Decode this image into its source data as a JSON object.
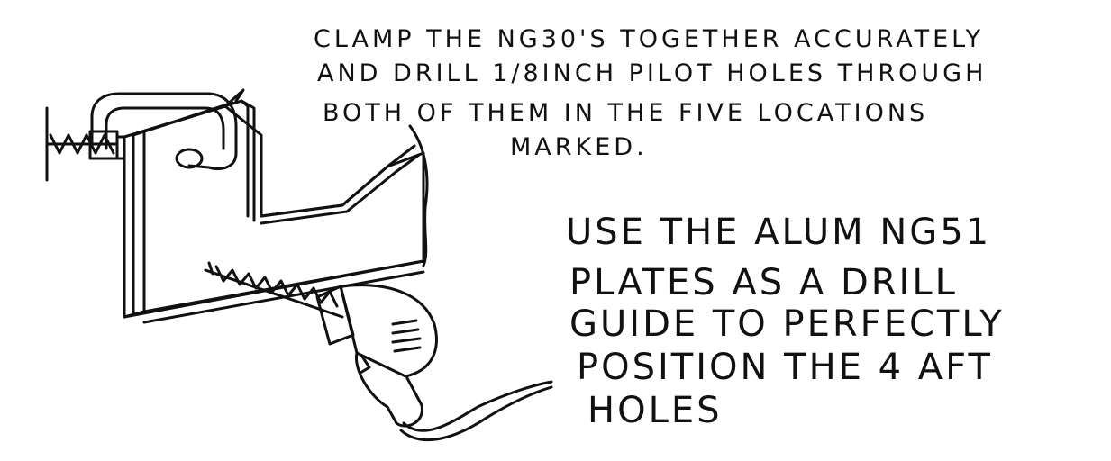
{
  "instructions": {
    "top_note": [
      "CLAMP THE NG30'S TOGETHER ACCURATELY",
      "AND DRILL 1/8INCH PILOT HOLES THROUGH",
      "BOTH OF THEM IN THE FIVE LOCATIONS",
      "MARKED."
    ],
    "side_note": [
      "USE THE ALUM NG51",
      "PLATES AS A DRILL",
      "GUIDE TO PERFECTLY",
      "POSITION THE 4 AFT",
      "HOLES"
    ]
  },
  "colors": {
    "ink": "#111111",
    "paper": "#ffffff"
  }
}
